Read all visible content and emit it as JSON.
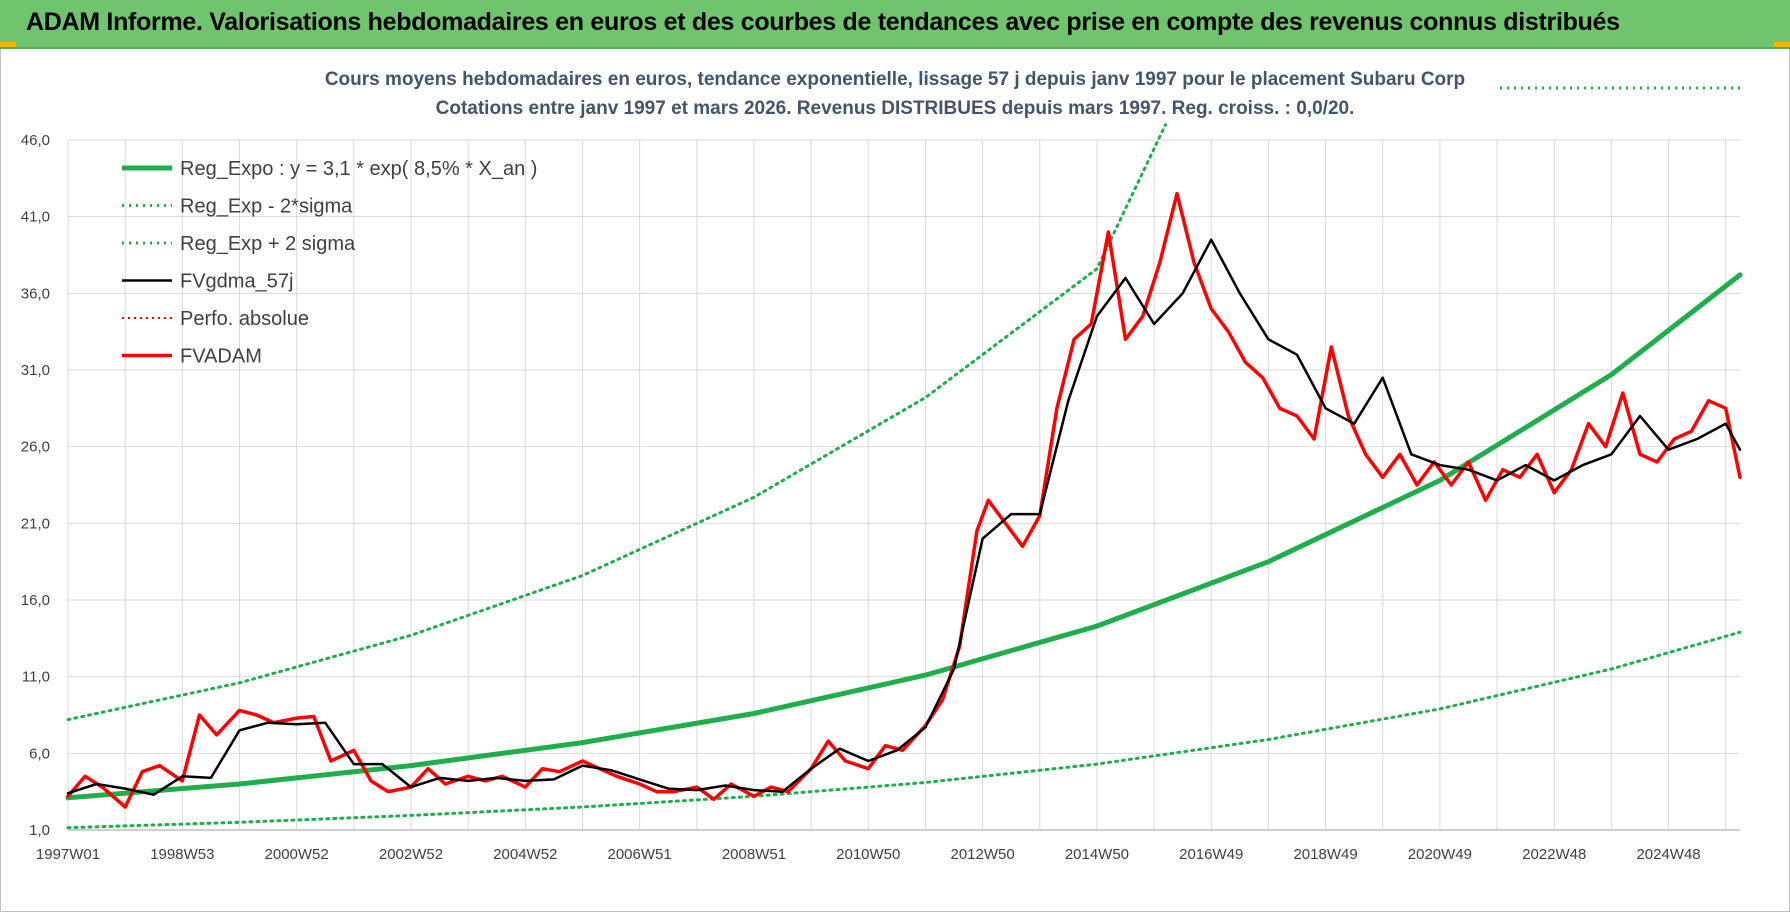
{
  "banner": {
    "title": "ADAM Informe. Valorisations hebdomadaires en euros et des courbes de tendances avec prise en compte des revenus connus distribués"
  },
  "colors": {
    "banner": "#70c46e",
    "trend": "#1fae4b",
    "band": "#1fae4b",
    "smoothed": "#000000",
    "perfo": "#e00000",
    "price": "#ff0000",
    "grid": "#d9d9d9"
  },
  "chart_data": {
    "type": "line",
    "title": "Cours moyens hebdomadaires en euros, tendance exponentielle, lissage 57 j depuis janv 1997  pour le placement Subaru Corp",
    "subtitle": "Cotations entre janv 1997 et mars 2026. Revenus DISTRIBUES depuis mars 1997.  Reg. croiss. : 0,0/20.",
    "xlabel": "",
    "ylabel": "",
    "ylim": [
      1.0,
      46.0
    ],
    "yticks": [
      "1,0",
      "6,0",
      "11,0",
      "16,0",
      "21,0",
      "26,0",
      "31,0",
      "36,0",
      "41,0",
      "46,0"
    ],
    "xticks": [
      "1997W01",
      "1998W53",
      "2000W52",
      "2002W52",
      "2004W52",
      "2006W51",
      "2008W51",
      "2010W50",
      "2012W50",
      "2014W50",
      "2016W49",
      "2018W49",
      "2020W49",
      "2022W48",
      "2024W48"
    ],
    "xlim": [
      1997.0,
      2026.25
    ],
    "grid": true,
    "legend_position": "top-left",
    "series": [
      {
        "name": "Reg_Expo : y = 3,1 * exp( 8,5% *  X_an )",
        "style": "solid-thick",
        "x": [
          1997.0,
          2000.0,
          2003.0,
          2006.0,
          2009.0,
          2012.0,
          2015.0,
          2018.0,
          2021.0,
          2024.0,
          2026.25
        ],
        "y": [
          3.1,
          4.0,
          5.2,
          6.7,
          8.6,
          11.1,
          14.3,
          18.5,
          23.8,
          30.7,
          37.2
        ]
      },
      {
        "name": "Reg_Exp - 2*sigma",
        "style": "dotted",
        "x": [
          1997.0,
          2000.0,
          2003.0,
          2006.0,
          2009.0,
          2012.0,
          2015.0,
          2018.0,
          2021.0,
          2024.0,
          2026.25
        ],
        "y": [
          1.15,
          1.5,
          1.95,
          2.5,
          3.2,
          4.1,
          5.3,
          6.9,
          8.9,
          11.5,
          13.9
        ]
      },
      {
        "name": "Reg_Exp + 2 sigma",
        "style": "dotted",
        "x": [
          1997.0,
          2000.0,
          2003.0,
          2006.0,
          2009.0,
          2012.0,
          2015.0,
          2016.2
        ],
        "y": [
          8.2,
          10.6,
          13.7,
          17.6,
          22.7,
          29.2,
          37.6,
          47.0
        ]
      },
      {
        "name": "FVgdma_57j",
        "style": "solid",
        "x": [
          1997.0,
          1997.5,
          1998.0,
          1998.5,
          1999.0,
          1999.5,
          2000.0,
          2000.5,
          2001.0,
          2001.5,
          2002.0,
          2002.5,
          2003.0,
          2003.5,
          2004.0,
          2004.5,
          2005.0,
          2005.5,
          2006.0,
          2006.5,
          2007.0,
          2007.5,
          2008.0,
          2008.5,
          2009.0,
          2009.5,
          2010.0,
          2010.5,
          2011.0,
          2011.5,
          2012.0,
          2012.5,
          2013.0,
          2013.5,
          2014.0,
          2014.5,
          2015.0,
          2015.5,
          2016.0,
          2016.5,
          2017.0,
          2017.5,
          2018.0,
          2018.5,
          2019.0,
          2019.5,
          2020.0,
          2020.5,
          2021.0,
          2021.5,
          2022.0,
          2022.5,
          2023.0,
          2023.5,
          2024.0,
          2024.5,
          2025.0,
          2025.5,
          2026.0,
          2026.25
        ],
        "y": [
          3.4,
          4.0,
          3.7,
          3.3,
          4.5,
          4.4,
          7.5,
          8.0,
          7.9,
          8.0,
          5.3,
          5.3,
          3.8,
          4.4,
          4.2,
          4.4,
          4.2,
          4.3,
          5.2,
          4.9,
          4.3,
          3.7,
          3.6,
          3.9,
          3.6,
          3.5,
          5.0,
          6.3,
          5.5,
          6.2,
          7.7,
          11.5,
          20.0,
          21.6,
          21.6,
          29.0,
          34.5,
          37.0,
          34.0,
          36.0,
          39.5,
          36.0,
          33.0,
          32.0,
          28.5,
          27.5,
          30.5,
          25.5,
          24.8,
          24.5,
          23.8,
          24.8,
          23.8,
          24.8,
          25.5,
          28.0,
          25.8,
          26.5,
          27.5,
          25.8
        ]
      },
      {
        "name": "Perfo. absolue",
        "style": "dotted",
        "x": [],
        "y": []
      },
      {
        "name": "FVADAM",
        "style": "solid-thick",
        "x": [
          1997.0,
          1997.3,
          1997.6,
          1998.0,
          1998.3,
          1998.6,
          1999.0,
          1999.3,
          1999.6,
          2000.0,
          2000.3,
          2000.6,
          2001.0,
          2001.3,
          2001.6,
          2002.0,
          2002.3,
          2002.6,
          2003.0,
          2003.3,
          2003.6,
          2004.0,
          2004.3,
          2004.6,
          2005.0,
          2005.3,
          2005.6,
          2006.0,
          2006.3,
          2006.6,
          2007.0,
          2007.3,
          2007.6,
          2008.0,
          2008.3,
          2008.6,
          2009.0,
          2009.3,
          2009.6,
          2010.0,
          2010.3,
          2010.6,
          2011.0,
          2011.3,
          2011.6,
          2012.0,
          2012.3,
          2012.6,
          2012.9,
          2013.1,
          2013.4,
          2013.7,
          2014.0,
          2014.3,
          2014.6,
          2014.9,
          2015.2,
          2015.5,
          2015.8,
          2016.1,
          2016.4,
          2016.7,
          2017.0,
          2017.3,
          2017.6,
          2017.9,
          2018.2,
          2018.5,
          2018.8,
          2019.1,
          2019.4,
          2019.7,
          2020.0,
          2020.3,
          2020.6,
          2020.9,
          2021.2,
          2021.5,
          2021.8,
          2022.1,
          2022.4,
          2022.7,
          2023.0,
          2023.3,
          2023.6,
          2023.9,
          2024.2,
          2024.5,
          2024.8,
          2025.1,
          2025.4,
          2025.7,
          2026.0,
          2026.25
        ],
        "y": [
          3.2,
          4.5,
          3.8,
          2.5,
          4.8,
          5.2,
          4.2,
          8.5,
          7.2,
          8.8,
          8.5,
          8.0,
          8.3,
          8.4,
          5.5,
          6.2,
          4.2,
          3.5,
          3.8,
          5.0,
          4.0,
          4.5,
          4.2,
          4.5,
          3.8,
          5.0,
          4.8,
          5.5,
          5.0,
          4.5,
          4.0,
          3.5,
          3.5,
          3.8,
          3.0,
          4.0,
          3.2,
          3.8,
          3.5,
          5.0,
          6.8,
          5.5,
          5.0,
          6.5,
          6.2,
          7.8,
          9.5,
          13.0,
          20.5,
          22.5,
          21.0,
          19.5,
          21.5,
          28.5,
          33.0,
          34.0,
          40.0,
          33.0,
          34.5,
          38.0,
          42.5,
          38.0,
          35.0,
          33.5,
          31.5,
          30.5,
          28.5,
          28.0,
          26.5,
          32.5,
          28.0,
          25.5,
          24.0,
          25.5,
          23.5,
          25.0,
          23.5,
          25.0,
          22.5,
          24.5,
          24.0,
          25.5,
          23.0,
          24.5,
          27.5,
          26.0,
          29.5,
          25.5,
          25.0,
          26.5,
          27.0,
          29.0,
          28.5,
          24.0
        ]
      }
    ]
  }
}
